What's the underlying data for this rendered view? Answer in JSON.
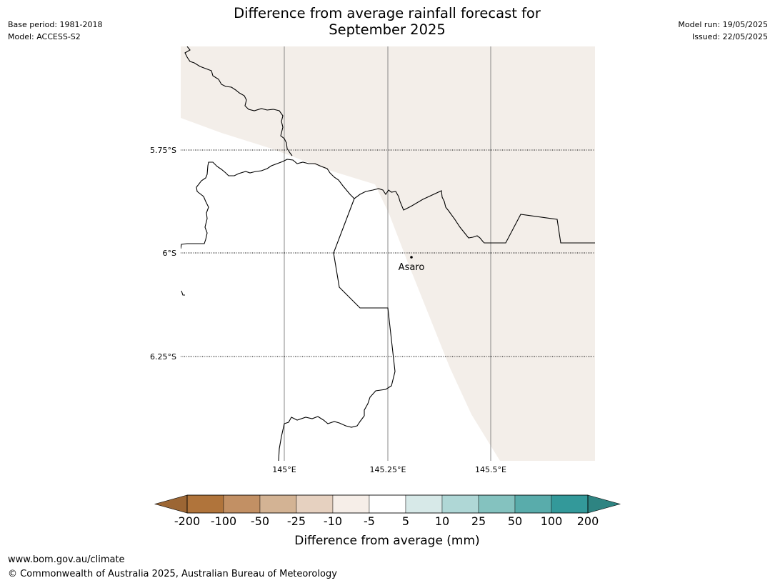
{
  "title": {
    "line1": "Difference from average rainfall forecast for",
    "line2": "September 2025"
  },
  "meta_left": {
    "base_period": "Base period: 1981-2018",
    "model": "Model: ACCESS-S2"
  },
  "meta_right": {
    "model_run": "Model run: 19/05/2025",
    "issued": "Issued: 22/05/2025"
  },
  "map": {
    "lat_labels": [
      "5.75°S",
      "6°S",
      "6.25°S"
    ],
    "lon_labels": [
      "145°E",
      "145.25°E",
      "145.5°E"
    ],
    "place_label": "Asaro",
    "colors": {
      "land_fill": "#f3eee9",
      "coast": "#000000",
      "grid_lon": "#888888",
      "grid_lat": "#000000"
    }
  },
  "colorbar": {
    "label": "Difference from average (mm)",
    "ticks": [
      "-200",
      "-100",
      "-50",
      "-25",
      "-10",
      "-5",
      "5",
      "10",
      "25",
      "50",
      "100",
      "200"
    ],
    "colors": [
      "#9c6634",
      "#b0743b",
      "#c29064",
      "#d3b394",
      "#e6d1c0",
      "#f6eee8",
      "#ffffff",
      "#d7e9e8",
      "#afd7d6",
      "#84c2bf",
      "#59acab",
      "#33999a",
      "#2e8482"
    ]
  },
  "footer": {
    "url": "www.bom.gov.au/climate",
    "copyright": "© Commonwealth of Australia 2025, Australian Bureau of Meteorology"
  }
}
